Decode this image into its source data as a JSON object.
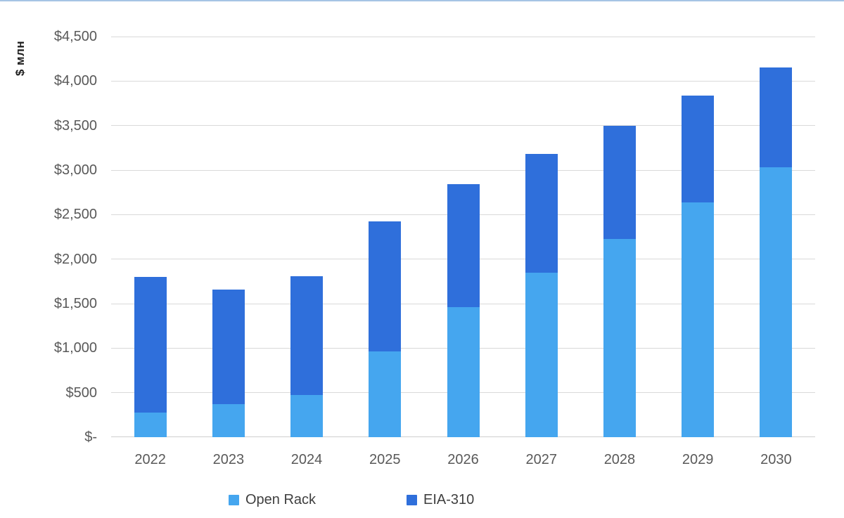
{
  "page": {
    "top_border_color": "#a6c4e4",
    "background": "#ffffff"
  },
  "chart_data": {
    "type": "bar",
    "stacked": true,
    "title": "",
    "ylabel": "$ млн",
    "xlabel": "",
    "categories": [
      "2022",
      "2023",
      "2024",
      "2025",
      "2026",
      "2027",
      "2028",
      "2029",
      "2030"
    ],
    "series": [
      {
        "name": "Open Rack",
        "color": "#45a6ef",
        "values": [
          280,
          370,
          470,
          965,
          1460,
          1850,
          2230,
          2640,
          3030
        ]
      },
      {
        "name": "EIA-310",
        "color": "#2f6fdb",
        "values": [
          1520,
          1285,
          1340,
          1455,
          1380,
          1330,
          1270,
          1200,
          1120
        ]
      }
    ],
    "totals": [
      1800,
      1655,
      1810,
      2420,
      2840,
      3180,
      3500,
      3840,
      4150
    ],
    "ylim": [
      0,
      4500
    ],
    "ytick_step": 500,
    "yticks": [
      "$-",
      "$500",
      "$1,000",
      "$1,500",
      "$2,000",
      "$2,500",
      "$3,000",
      "$3,500",
      "$4,000",
      "$4,500"
    ],
    "grid": true,
    "gridline_color": "#d9d9d9",
    "tick_label_color": "#595959",
    "legend_position": "bottom",
    "legend_text_color": "#3f3f3f"
  }
}
